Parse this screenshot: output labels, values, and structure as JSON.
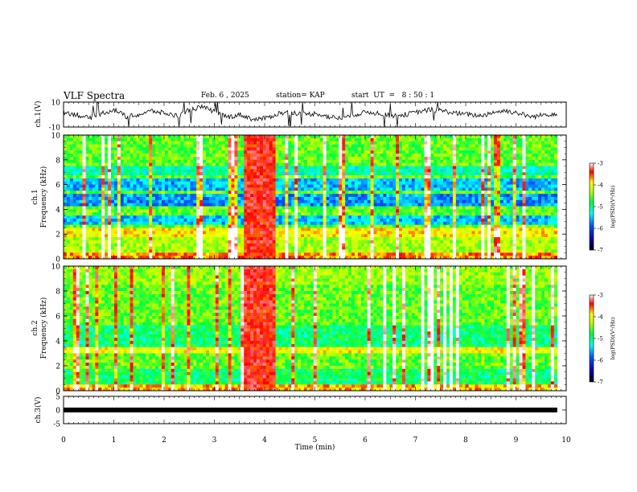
{
  "header": {
    "title": "VLF Spectra",
    "date": "Feb. 6 , 2025",
    "station": "station= KAP",
    "start": "start  UT  =   8 : 50 : 1"
  },
  "colors": {
    "colormap": [
      "#000000",
      "#00008b",
      "#0000ff",
      "#00bfff",
      "#00ff7f",
      "#7fff00",
      "#ffff00",
      "#ff0000",
      "#ffffff"
    ]
  },
  "chart_data": [
    {
      "type": "line",
      "ylabel": "ch.1(V)",
      "ylim": [
        -10,
        10
      ],
      "yticks": [
        "10",
        "-10"
      ],
      "series": [
        {
          "values": [
            2,
            0,
            -3,
            1,
            4,
            -2,
            0,
            3,
            1,
            -1,
            4,
            6,
            2,
            -2,
            0,
            -4,
            -3,
            1,
            2,
            0,
            1,
            -2,
            -3,
            0,
            2,
            1,
            -1,
            0,
            2,
            4,
            3,
            1,
            0,
            -1,
            2,
            3,
            1,
            -2,
            0,
            1
          ]
        }
      ]
    },
    {
      "type": "heatmap",
      "ylabel": "ch.1\nFrequency (kHz)",
      "yticks": [
        "0",
        "2",
        "4",
        "6",
        "8",
        "10"
      ],
      "xlim": [
        0,
        9.82
      ],
      "ylim": [
        0,
        10
      ],
      "colorbar": {
        "label": "log(PSD)(V²/Hz)",
        "ticks": [
          "-3",
          "-4",
          "-5",
          "-6",
          "-7"
        ]
      }
    },
    {
      "type": "heatmap",
      "ylabel": "ch.2\nFrequency (kHz)",
      "yticks": [
        "0",
        "2",
        "4",
        "6",
        "8",
        "10"
      ],
      "xlim": [
        0,
        9.82
      ],
      "ylim": [
        0,
        10
      ],
      "colorbar": {
        "label": "log(PSD)(V²/Hz)",
        "ticks": [
          "-3",
          "-4",
          "-5",
          "-6",
          "-7"
        ]
      }
    },
    {
      "type": "line",
      "ylabel": "ch.3(V)",
      "ylim": [
        -5,
        5
      ],
      "yticks": [
        "5",
        "0",
        "-5"
      ],
      "series": [
        {
          "values": [
            0,
            0
          ]
        }
      ],
      "xlabel": "Time (min)",
      "xticks": [
        "0",
        "1",
        "2",
        "3",
        "4",
        "5",
        "6",
        "7",
        "8",
        "9",
        "10"
      ]
    }
  ]
}
